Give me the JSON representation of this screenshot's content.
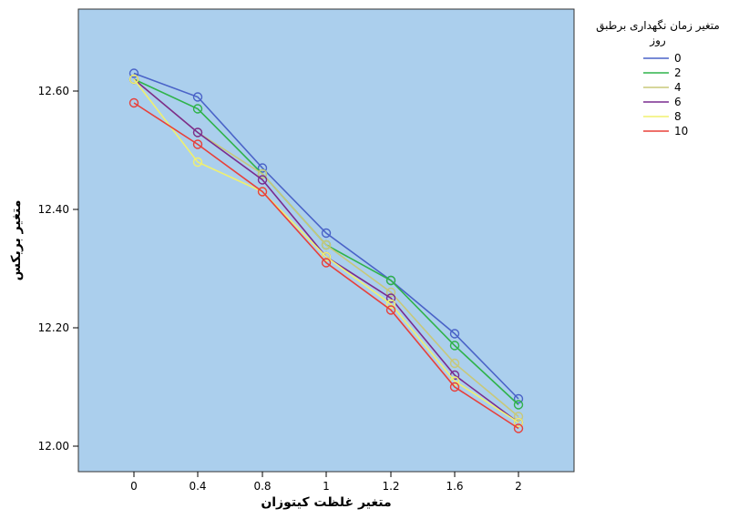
{
  "chart_data": {
    "type": "line",
    "xlabel": "متغیر غلظت کیتوزان",
    "ylabel": "متغیر بریکس",
    "categories": [
      "0",
      "0.4",
      "0.8",
      "1",
      "1.2",
      "1.6",
      "2"
    ],
    "yticks": [
      "12.00",
      "12.20",
      "12.40",
      "12.60"
    ],
    "ylim": [
      11.96,
      12.75
    ],
    "grid": false,
    "legend": {
      "title_lines": [
        "متغیر زمان نگهداری برطبق",
        "روز"
      ],
      "placement": "right"
    },
    "plot_background": "#abcfed",
    "series": [
      {
        "name": "0",
        "color": "#4a63c8",
        "values": [
          12.63,
          12.59,
          12.47,
          12.36,
          12.28,
          12.19,
          12.08
        ]
      },
      {
        "name": "2",
        "color": "#2fb34a",
        "values": [
          12.62,
          12.57,
          12.46,
          12.34,
          12.28,
          12.17,
          12.07
        ]
      },
      {
        "name": "4",
        "color": "#c8c87a",
        "values": [
          12.62,
          12.53,
          12.46,
          12.34,
          12.26,
          12.14,
          12.05
        ]
      },
      {
        "name": "6",
        "color": "#7a2c8f",
        "values": [
          12.62,
          12.53,
          12.45,
          12.32,
          12.25,
          12.12,
          12.04
        ]
      },
      {
        "name": "8",
        "color": "#f0f06e",
        "values": [
          12.62,
          12.48,
          12.43,
          12.32,
          12.24,
          12.11,
          12.04
        ]
      },
      {
        "name": "10",
        "color": "#e8403a",
        "values": [
          12.58,
          12.51,
          12.43,
          12.31,
          12.23,
          12.1,
          12.03
        ]
      }
    ]
  }
}
